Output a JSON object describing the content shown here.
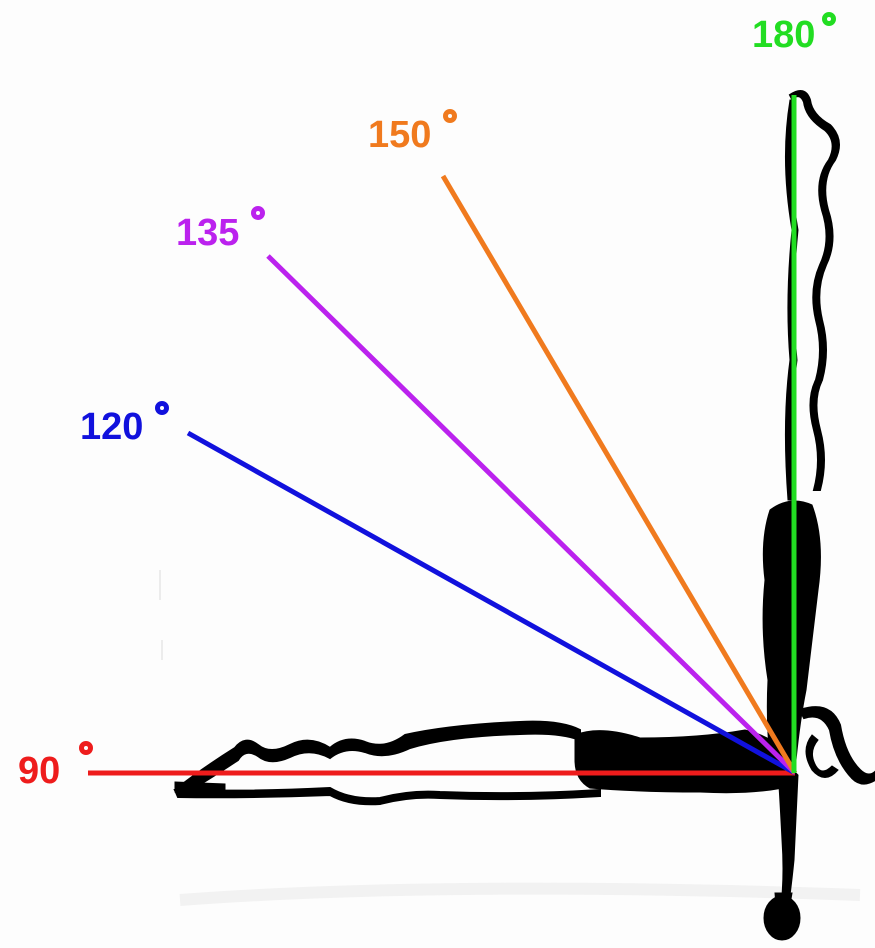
{
  "diagram": {
    "angle_lines": [
      {
        "key": "line_90",
        "label": "90",
        "color": "#ee1c1c"
      },
      {
        "key": "line_120",
        "label": "120",
        "color": "#1111dd"
      },
      {
        "key": "line_135",
        "label": "135",
        "color": "#bb22ee"
      },
      {
        "key": "line_150",
        "label": "150",
        "color": "#f07a1e"
      },
      {
        "key": "line_180",
        "label": "180",
        "color": "#22dd22"
      }
    ],
    "labels": {
      "a90": "90",
      "a120": "120",
      "a135": "135",
      "a150": "150",
      "a180": "180"
    },
    "degree_symbol_icon": "degree-circle-icon",
    "sketch_color": "#000000"
  }
}
